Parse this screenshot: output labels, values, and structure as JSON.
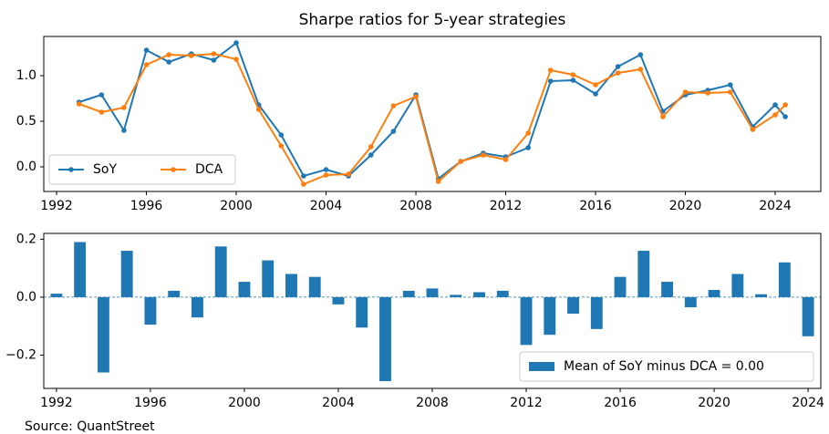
{
  "chart_data": [
    {
      "type": "line",
      "title": "Sharpe ratios for 5-year strategies",
      "x": [
        1993,
        1994,
        1995,
        1996,
        1997,
        1998,
        1999,
        2000,
        2001,
        2002,
        2003,
        2004,
        2005,
        2006,
        2007,
        2008,
        2009,
        2010,
        2011,
        2012,
        2013,
        2014,
        2015,
        2016,
        2017,
        2018,
        2019,
        2020,
        2021,
        2022,
        2023,
        2024,
        2024.45
      ],
      "series": [
        {
          "name": "SoY",
          "color": "#1f77b4",
          "values": [
            0.71,
            0.79,
            0.4,
            1.28,
            1.15,
            1.24,
            1.17,
            1.36,
            0.68,
            0.35,
            -0.1,
            -0.03,
            -0.1,
            0.13,
            0.39,
            0.79,
            -0.13,
            0.06,
            0.15,
            0.11,
            0.21,
            0.94,
            0.95,
            0.8,
            1.1,
            1.23,
            0.61,
            0.79,
            0.84,
            0.9,
            0.44,
            0.68,
            0.55
          ]
        },
        {
          "name": "DCA",
          "color": "#ff7f0e",
          "values": [
            0.69,
            0.6,
            0.65,
            1.12,
            1.23,
            1.22,
            1.24,
            1.18,
            0.63,
            0.23,
            -0.19,
            -0.09,
            -0.08,
            0.22,
            0.67,
            0.77,
            -0.16,
            0.06,
            0.13,
            0.08,
            0.37,
            1.06,
            1.01,
            0.9,
            1.03,
            1.07,
            0.55,
            0.82,
            0.81,
            0.82,
            0.41,
            0.57,
            0.68
          ]
        }
      ],
      "xlim": [
        1991.43,
        2026.03
      ],
      "xticks": [
        1992,
        1996,
        2000,
        2004,
        2008,
        2012,
        2016,
        2020,
        2024
      ],
      "ylim": [
        -0.27,
        1.43
      ],
      "yticks": [
        {
          "value": 0,
          "label": "0.0"
        },
        {
          "value": 0.5,
          "label": "0.5"
        },
        {
          "value": 1,
          "label": "1.0"
        }
      ],
      "legend": "lower left"
    },
    {
      "type": "bar",
      "x": [
        1992,
        1993,
        1994,
        1995,
        1996,
        1997,
        1998,
        1999,
        2000,
        2001,
        2002,
        2003,
        2004,
        2005,
        2006,
        2007,
        2008,
        2009,
        2010,
        2011,
        2012,
        2013,
        2014,
        2015,
        2016,
        2017,
        2018,
        2019,
        2020,
        2021,
        2022,
        2023,
        2024
      ],
      "series": [
        {
          "name": "Mean of SoY minus DCA = 0.00",
          "color": "#1f77b4",
          "values": [
            0.012,
            0.19,
            -0.26,
            0.16,
            -0.095,
            0.022,
            -0.07,
            0.175,
            0.053,
            0.127,
            0.08,
            0.07,
            -0.025,
            -0.105,
            -0.29,
            0.022,
            0.03,
            0.008,
            0.017,
            0.022,
            -0.165,
            -0.13,
            -0.057,
            -0.11,
            0.07,
            0.16,
            0.053,
            -0.035,
            0.025,
            0.08,
            0.01,
            0.12,
            -0.135
          ]
        }
      ],
      "xlim": [
        1991.46,
        2024.54
      ],
      "xticks": [
        1992,
        1996,
        2000,
        2004,
        2008,
        2012,
        2016,
        2020,
        2024
      ],
      "ylim": [
        -0.315,
        0.22
      ],
      "yticks": [
        {
          "value": -0.2,
          "label": "−0.2"
        },
        {
          "value": 0,
          "label": "0.0"
        },
        {
          "value": 0.2,
          "label": "0.2"
        }
      ],
      "legend": "lower right"
    }
  ],
  "source": "Source: QuantStreet"
}
